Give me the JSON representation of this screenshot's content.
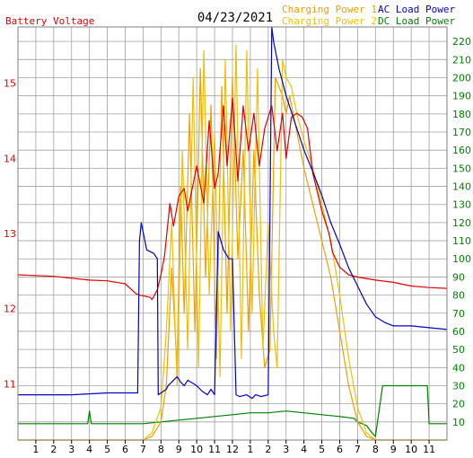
{
  "chart_data": {
    "type": "line",
    "date": "04/23/2021",
    "left_axis_title": "Battery Voltage",
    "legend": [
      "Charging Power 1",
      "Charging Power 2",
      "AC Load Power",
      "DC Load Power"
    ],
    "colors": {
      "battery_voltage": "#e00000",
      "charging_power_1": "#f0a000",
      "charging_power_2": "#f0c000",
      "ac_load_power": "#0000cc",
      "dc_load_power": "#008000",
      "grid": "#a0a0a0"
    },
    "x_ticks": [
      "1",
      "2",
      "3",
      "4",
      "5",
      "6",
      "7",
      "8",
      "9",
      "10",
      "11",
      "12",
      "1",
      "2",
      "3",
      "4",
      "5",
      "6",
      "7",
      "8",
      "9",
      "10",
      "11"
    ],
    "x_range": [
      0,
      24
    ],
    "left_ticks": [
      "11",
      "12",
      "13",
      "14",
      "15"
    ],
    "left_range": [
      10.25,
      15.75
    ],
    "right_ticks": [
      "10",
      "20",
      "30",
      "40",
      "50",
      "60",
      "70",
      "80",
      "90",
      "100",
      "110",
      "120",
      "130",
      "140",
      "150",
      "160",
      "170",
      "180",
      "190",
      "200",
      "210",
      "220"
    ],
    "right_range": [
      0,
      228
    ],
    "grid": true,
    "series": [
      {
        "name": "Battery Voltage",
        "key": "battery_voltage",
        "axis": "left",
        "x": [
          0,
          2,
          4,
          5,
          6,
          6.6,
          6.8,
          7.4,
          7.5,
          7.8,
          8,
          8.2,
          8.5,
          8.7,
          9,
          9.3,
          9.5,
          10,
          10.4,
          10.7,
          11,
          11.2,
          11.5,
          11.7,
          12,
          12.3,
          12.6,
          12.9,
          13.2,
          13.5,
          13.8,
          14.2,
          14.5,
          14.8,
          15,
          15.3,
          15.6,
          15.9,
          16.2,
          16.5,
          16.8,
          17,
          17.4,
          17.6,
          18,
          18.5,
          19,
          20,
          21,
          22,
          23,
          24
        ],
        "y": [
          12.45,
          12.43,
          12.38,
          12.37,
          12.33,
          12.2,
          12.18,
          12.15,
          12.12,
          12.25,
          12.45,
          12.7,
          13.4,
          13.1,
          13.5,
          13.6,
          13.3,
          13.9,
          13.4,
          14.5,
          13.6,
          13.8,
          14.7,
          13.9,
          14.8,
          13.7,
          14.7,
          14.1,
          14.6,
          13.9,
          14.4,
          14.7,
          14.1,
          14.6,
          14.0,
          14.55,
          14.6,
          14.55,
          14.4,
          13.8,
          13.5,
          13.3,
          13.0,
          12.75,
          12.55,
          12.45,
          12.42,
          12.38,
          12.35,
          12.3,
          12.28,
          12.27
        ]
      },
      {
        "name": "Charging Power 1",
        "key": "charging_power_1",
        "axis": "right",
        "x": [
          0,
          7,
          7.5,
          8,
          8.3,
          8.6,
          8.9,
          9.1,
          9.3,
          9.6,
          9.9,
          10.2,
          10.5,
          10.8,
          11.1,
          11.4,
          11.7,
          12,
          12.3,
          12.6,
          12.9,
          13.2,
          13.5,
          13.8,
          14.1,
          14.4,
          14.8,
          15,
          15.2,
          15.6,
          16,
          16.5,
          17,
          17.5,
          18,
          18.5,
          19,
          19.5,
          20,
          21,
          22,
          23,
          24
        ],
        "y": [
          0,
          0,
          2,
          10,
          30,
          95,
          40,
          140,
          70,
          180,
          60,
          205,
          90,
          185,
          45,
          195,
          70,
          200,
          100,
          160,
          60,
          160,
          80,
          40,
          50,
          200,
          190,
          180,
          190,
          170,
          150,
          130,
          110,
          90,
          60,
          30,
          10,
          2,
          0,
          0,
          0,
          0,
          0
        ]
      },
      {
        "name": "Charging Power 2",
        "key": "charging_power_2",
        "axis": "right",
        "x": [
          0,
          7,
          7.5,
          8,
          8.3,
          8.6,
          8.9,
          9.2,
          9.5,
          9.8,
          10.1,
          10.4,
          10.7,
          11,
          11.3,
          11.6,
          11.9,
          12.2,
          12.5,
          12.8,
          13.1,
          13.4,
          13.7,
          14,
          14.3,
          14.5,
          14.8,
          15,
          15.3,
          15.6,
          16,
          16.5,
          17,
          17.5,
          18,
          18.5,
          19,
          19.5,
          20,
          21,
          22,
          23,
          24
        ],
        "y": [
          0,
          0,
          4,
          18,
          60,
          120,
          30,
          160,
          50,
          200,
          40,
          215,
          80,
          170,
          35,
          210,
          60,
          218,
          45,
          215,
          70,
          205,
          50,
          120,
          60,
          40,
          210,
          200,
          195,
          180,
          165,
          150,
          130,
          110,
          80,
          45,
          18,
          4,
          0,
          0,
          0,
          0,
          0
        ]
      },
      {
        "name": "AC Load Power",
        "key": "ac_load_power",
        "axis": "right",
        "x": [
          0,
          3,
          5,
          6.7,
          6.8,
          6.9,
          7.2,
          7.6,
          7.8,
          7.85,
          8.3,
          8.4,
          8.6,
          8.9,
          9.1,
          9.3,
          9.5,
          10,
          10.3,
          10.6,
          10.8,
          11,
          11.2,
          11.5,
          11.8,
          12,
          12.2,
          12.4,
          12.8,
          13.1,
          13.3,
          13.6,
          14,
          14.2,
          14.3,
          14.6,
          15,
          15.5,
          16,
          16.5,
          17,
          17.5,
          18,
          18.5,
          19,
          19.5,
          20,
          20.5,
          21,
          22,
          23,
          24
        ],
        "y": [
          25,
          25,
          26,
          26,
          110,
          120,
          105,
          103,
          100,
          25,
          28,
          30,
          32,
          35,
          32,
          30,
          33,
          30,
          27,
          25,
          28,
          25,
          115,
          105,
          100,
          100,
          25,
          24,
          25,
          23,
          25,
          24,
          25,
          230,
          220,
          205,
          190,
          175,
          160,
          148,
          135,
          120,
          108,
          95,
          85,
          75,
          68,
          65,
          63,
          63,
          62,
          61
        ]
      },
      {
        "name": "DC Load Power",
        "key": "dc_load_power",
        "axis": "right",
        "x": [
          0,
          2,
          3,
          3.9,
          4,
          4.1,
          5,
          6,
          7,
          8,
          9,
          10,
          11,
          12,
          13,
          14,
          15,
          16,
          17,
          18,
          18.8,
          19,
          19.5,
          19.8,
          20,
          20.4,
          21,
          22,
          22.9,
          23,
          24
        ],
        "y": [
          9,
          9,
          9,
          9,
          16,
          9,
          9,
          9,
          9,
          10,
          11,
          12,
          13,
          14,
          15,
          15,
          16,
          15,
          14,
          13,
          12,
          10,
          8,
          4,
          2,
          30,
          30,
          30,
          30,
          9,
          9
        ]
      }
    ]
  }
}
